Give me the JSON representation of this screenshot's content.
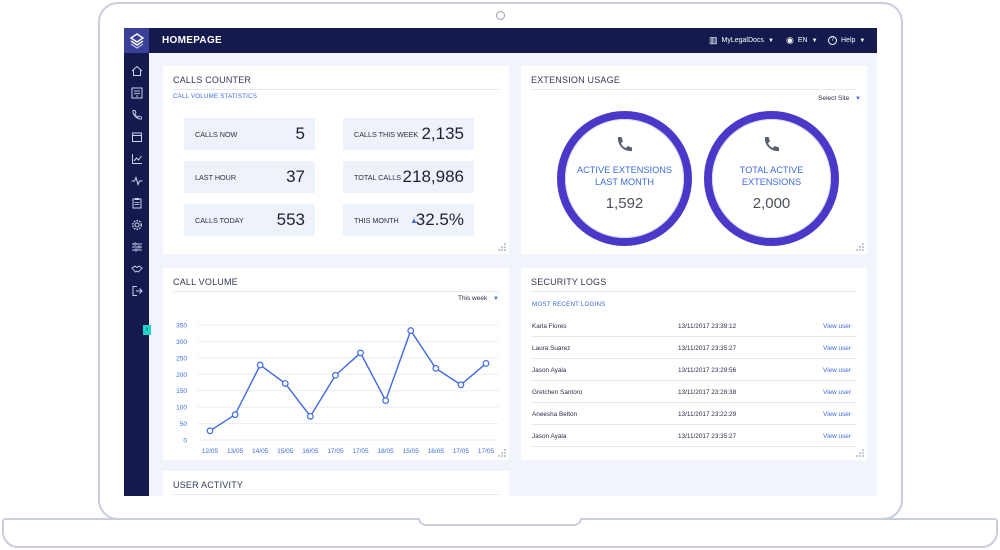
{
  "header": {
    "title": "HOMEPAGE",
    "account_label": "MyLegalDocs",
    "language_label": "EN",
    "help_label": "Help"
  },
  "calls_counter": {
    "title": "CALLS COUNTER",
    "subtitle": "CALL VOLUME STATISTICS",
    "stats": [
      {
        "label": "CALLS NOW",
        "value": "5"
      },
      {
        "label": "CALLS THIS WEEK",
        "value": "2,135"
      },
      {
        "label": "LAST HOUR",
        "value": "37"
      },
      {
        "label": "TOTAL CALLS",
        "value": "218,986"
      },
      {
        "label": "CALLS TODAY",
        "value": "553"
      },
      {
        "label": "THIS MONTH",
        "value": "32.5%"
      }
    ]
  },
  "extension_usage": {
    "title": "EXTENSION USAGE",
    "select_label": "Select Site",
    "rings": [
      {
        "label_line1": "ACTIVE EXTENSIONS",
        "label_line2": "LAST MONTH",
        "value": "1,592"
      },
      {
        "label_line1": "TOTAL ACTIVE",
        "label_line2": "EXTENSIONS",
        "value": "2,000"
      }
    ]
  },
  "call_volume": {
    "title": "CALL VOLUME",
    "period_label": "This week"
  },
  "chart_data": {
    "type": "line",
    "categories": [
      "12/05",
      "13/05",
      "14/05",
      "15/05",
      "16/05",
      "17/05",
      "17/05",
      "18/05",
      "15/05",
      "16/05",
      "17/05",
      "17/05"
    ],
    "values": [
      28,
      77,
      228,
      172,
      72,
      197,
      265,
      120,
      333,
      218,
      168,
      233
    ],
    "ylim": [
      0,
      350
    ],
    "yticks": [
      0,
      50,
      100,
      150,
      200,
      250,
      300,
      350
    ],
    "grid": true,
    "color": "#3f6ae0"
  },
  "security_logs": {
    "title": "SECURITY LOGS",
    "subtitle": "MOST RECENT LOGINS",
    "rows": [
      {
        "name": "Karla Flores",
        "time": "13/11/2017 23:39:12",
        "action": "View user"
      },
      {
        "name": "Laura Suarez",
        "time": "13/11/2017 23:35:27",
        "action": "View user"
      },
      {
        "name": "Jason Ayala",
        "time": "13/11/2017 23:29:56",
        "action": "View user"
      },
      {
        "name": "Gretchen Santoro",
        "time": "13/11/2017 23:28:38",
        "action": "View user"
      },
      {
        "name": "Aneesha Belton",
        "time": "13/11/2017 23:22:29",
        "action": "View user"
      },
      {
        "name": "Jason Ayala",
        "time": "13/11/2017 23:35:27",
        "action": "View user"
      }
    ]
  },
  "user_activity": {
    "title": "USER ACTIVITY"
  },
  "sidebar": {
    "icons": [
      "home-icon",
      "dialpad-icon",
      "phone-icon",
      "calendar-icon",
      "chart-icon",
      "pulse-icon",
      "clipboard-icon",
      "gear-icon",
      "sliders-icon",
      "handshake-icon",
      "logout-icon"
    ]
  },
  "colors": {
    "nav_bg": "#141a4d",
    "accent": "#3f6ae0",
    "ring": "#4a39c8",
    "toggle": "#1ed4c7"
  }
}
